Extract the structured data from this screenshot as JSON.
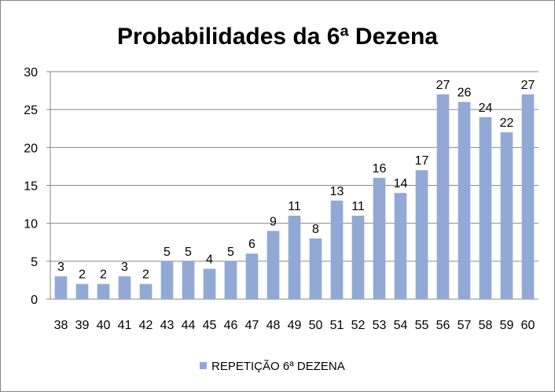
{
  "chart_data": {
    "type": "bar",
    "title": "Probabilidades da 6ª Dezena",
    "xlabel": "",
    "ylabel": "",
    "categories": [
      "38",
      "39",
      "40",
      "41",
      "42",
      "43",
      "44",
      "45",
      "46",
      "47",
      "48",
      "49",
      "50",
      "51",
      "52",
      "53",
      "54",
      "55",
      "56",
      "57",
      "58",
      "59",
      "60"
    ],
    "series": [
      {
        "name": "REPETIÇÃO 6ª DEZENA",
        "color": "#92a9d6",
        "values": [
          3,
          2,
          2,
          3,
          2,
          5,
          5,
          4,
          5,
          6,
          9,
          11,
          8,
          13,
          11,
          16,
          14,
          17,
          27,
          26,
          24,
          22,
          27
        ]
      }
    ],
    "ylim": [
      0,
      30
    ],
    "yticks": [
      0,
      5,
      10,
      15,
      20,
      25,
      30
    ],
    "grid": true,
    "legend_position": "bottom",
    "data_labels": true
  }
}
